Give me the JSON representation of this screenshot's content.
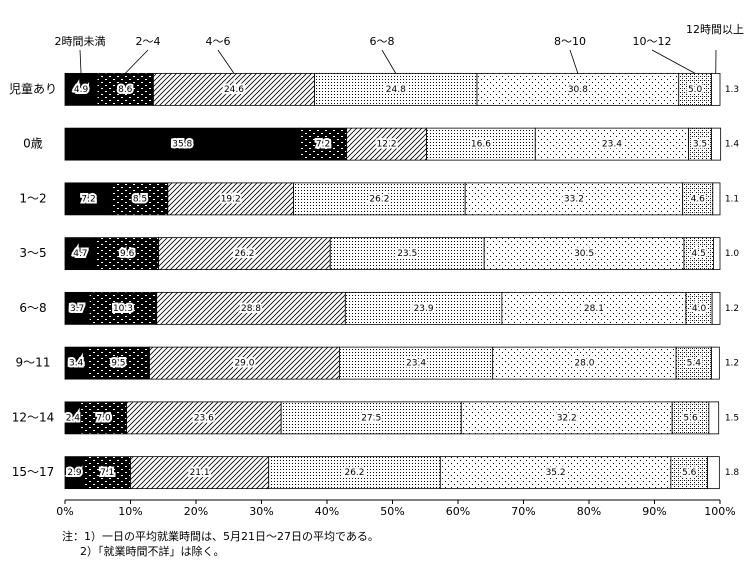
{
  "chart_data": {
    "type": "stacked-bar-horizontal",
    "categories": [
      "児童あり",
      "0歳",
      "1～2",
      "3～5",
      "6～8",
      "9～11",
      "12～14",
      "15～17"
    ],
    "series": [
      {
        "name": "2時間未満",
        "color": "#000000",
        "pattern": "solid",
        "values": [
          4.9,
          35.8,
          7.2,
          4.7,
          3.7,
          3.4,
          2.4,
          2.9
        ],
        "value_labels": [
          "4.9",
          "35.8",
          "7.2",
          "4.7",
          "3.7",
          "3.4",
          "2.4",
          "2.9"
        ]
      },
      {
        "name": "2～4",
        "color": "#000000",
        "pattern": "brick",
        "values": [
          8.6,
          7.2,
          8.5,
          9.6,
          10.3,
          9.5,
          7.0,
          7.1
        ],
        "value_labels": [
          "8.6",
          "7.2",
          "8.5",
          "9.6",
          "10.3",
          "9.5",
          "7.0",
          "7.1"
        ]
      },
      {
        "name": "4～6",
        "color": "#000000",
        "pattern": "diagonal",
        "values": [
          24.6,
          12.2,
          19.2,
          26.2,
          28.8,
          29.0,
          23.6,
          21.1
        ],
        "value_labels": [
          "24.6",
          "12.2",
          "19.2",
          "26.2",
          "28.8",
          "29.0",
          "23.6",
          "21.1"
        ]
      },
      {
        "name": "6～8",
        "color": "#000000",
        "pattern": "dots-dense",
        "values": [
          24.8,
          16.6,
          26.2,
          23.5,
          23.9,
          23.4,
          27.5,
          26.2
        ],
        "value_labels": [
          "24.8",
          "16.6",
          "26.2",
          "23.5",
          "23.9",
          "23.4",
          "27.5",
          "26.2"
        ]
      },
      {
        "name": "8～10",
        "color": "#000000",
        "pattern": "dots-sparse",
        "values": [
          30.8,
          23.4,
          33.2,
          30.5,
          28.1,
          28.0,
          32.2,
          35.2
        ],
        "value_labels": [
          "30.8",
          "23.4",
          "33.2",
          "30.5",
          "28.1",
          "28.0",
          "32.2",
          "35.2"
        ]
      },
      {
        "name": "10～12",
        "color": "#000000",
        "pattern": "checker",
        "values": [
          5.0,
          3.5,
          4.6,
          4.5,
          4.0,
          5.4,
          5.6,
          5.6
        ],
        "value_labels": [
          "5.0",
          "3.5",
          "4.6",
          "4.5",
          "4.0",
          "5.4",
          "5.6",
          "5.6"
        ]
      },
      {
        "name": "12時間以上",
        "color": "#ffffff",
        "pattern": "none",
        "values": [
          1.3,
          1.4,
          1.1,
          1.0,
          1.2,
          1.2,
          1.5,
          1.8
        ],
        "value_labels": [
          "1.3",
          "1.4",
          "1.1",
          "1.0",
          "1.2",
          "1.2",
          "1.5",
          "1.8"
        ]
      }
    ],
    "xlim": [
      0,
      100
    ],
    "xticks": [
      {
        "value": 0,
        "label": "0%"
      },
      {
        "value": 10,
        "label": "10%"
      },
      {
        "value": 20,
        "label": "20%"
      },
      {
        "value": 30,
        "label": "30%"
      },
      {
        "value": 40,
        "label": "40%"
      },
      {
        "value": 50,
        "label": "50%"
      },
      {
        "value": 60,
        "label": "60%"
      },
      {
        "value": 70,
        "label": "70%"
      },
      {
        "value": 80,
        "label": "80%"
      },
      {
        "value": 90,
        "label": "90%"
      },
      {
        "value": 100,
        "label": "100%"
      }
    ],
    "notes": [
      "注：1）一日の平均就業時間は、5月21日～27日の平均である。",
      "2）「就業時間不詳」は除く。"
    ]
  }
}
